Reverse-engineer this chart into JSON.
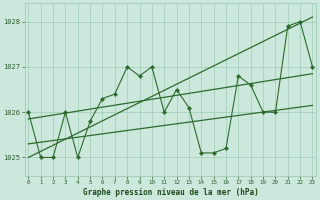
{
  "title": "Graphe pression niveau de la mer (hPa)",
  "x_values": [
    0,
    1,
    2,
    3,
    4,
    5,
    6,
    7,
    8,
    9,
    10,
    11,
    12,
    13,
    14,
    15,
    16,
    17,
    18,
    19,
    20,
    21,
    22,
    23
  ],
  "y_values": [
    1026.0,
    1025.0,
    1025.0,
    1026.0,
    1025.0,
    1025.8,
    1026.3,
    1026.4,
    1027.0,
    1026.8,
    1027.0,
    1026.0,
    1026.5,
    1026.1,
    1025.1,
    1025.1,
    1025.2,
    1026.8,
    1026.6,
    1026.0,
    1026.0,
    1027.9,
    1028.0,
    1027.0
  ],
  "trend1_x": [
    0,
    23
  ],
  "trend1_y": [
    1025.0,
    1028.1
  ],
  "trend2_x": [
    0,
    23
  ],
  "trend2_y": [
    1025.3,
    1026.15
  ],
  "trend3_x": [
    0,
    23
  ],
  "trend3_y": [
    1025.85,
    1026.85
  ],
  "line_color": "#2d6a2d",
  "marker_color": "#2d6a2d",
  "bg_color": "#cce8dc",
  "grid_color": "#9ecdb5",
  "tick_label_color": "#2d5c2d",
  "title_color": "#1a4a1a",
  "ylim": [
    1024.6,
    1028.4
  ],
  "yticks": [
    1025,
    1026,
    1027,
    1028
  ],
  "xlim": [
    -0.3,
    23.3
  ],
  "xticks": [
    0,
    1,
    2,
    3,
    4,
    5,
    6,
    7,
    8,
    9,
    10,
    11,
    12,
    13,
    14,
    15,
    16,
    17,
    18,
    19,
    20,
    21,
    22,
    23
  ]
}
